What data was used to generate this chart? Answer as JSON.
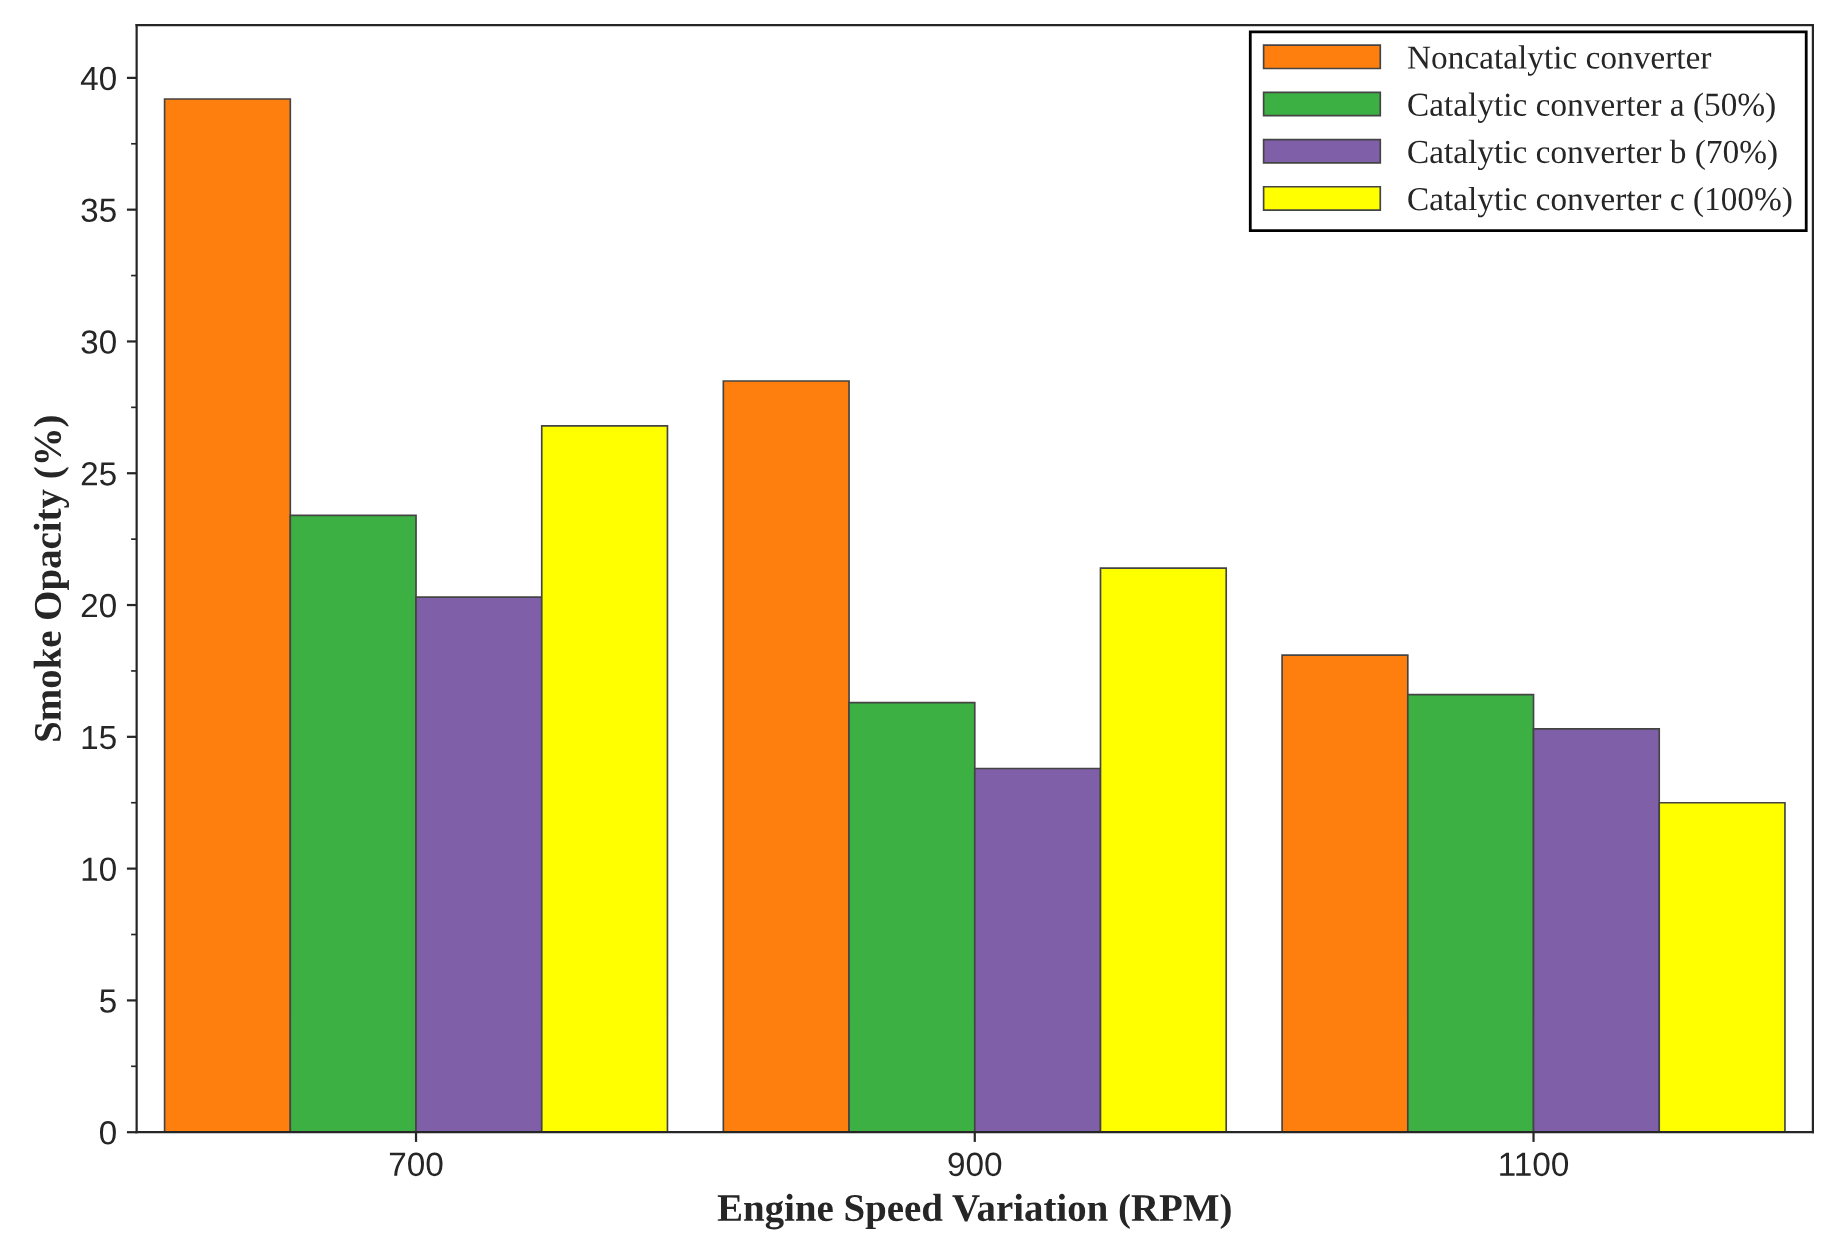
{
  "chart_data": {
    "type": "bar",
    "xlabel": "Engine Speed Variation (RPM)",
    "ylabel": "Smoke Opacity (%)",
    "categories": [
      "700",
      "900",
      "1100"
    ],
    "series": [
      {
        "name": "Noncatalytic converter",
        "color": "#ff7f0e",
        "values": [
          39.2,
          28.5,
          18.1
        ]
      },
      {
        "name": "Catalytic converter a (50%)",
        "color": "#3cb043",
        "values": [
          23.4,
          16.3,
          16.6
        ]
      },
      {
        "name": "Catalytic converter b (70%)",
        "color": "#7f5fa8",
        "values": [
          20.3,
          13.8,
          15.3
        ]
      },
      {
        "name": "Catalytic converter c (100%)",
        "color": "#ffff00",
        "values": [
          26.8,
          21.4,
          12.5
        ]
      }
    ],
    "ylim": [
      0,
      42
    ],
    "yticks": [
      0,
      5,
      10,
      15,
      20,
      25,
      30,
      35,
      40
    ],
    "grid": false,
    "legend": "top right"
  }
}
